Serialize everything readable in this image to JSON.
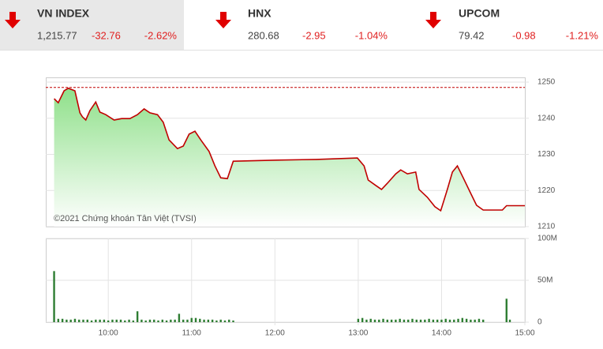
{
  "tickers": [
    {
      "name": "VN INDEX",
      "value": "1,215.77",
      "change": "-32.76",
      "percent": "-2.62%"
    },
    {
      "name": "HNX",
      "value": "280.68",
      "change": "-2.95",
      "percent": "-1.04%"
    },
    {
      "name": "UPCOM",
      "value": "79.42",
      "change": "-0.98",
      "percent": "-1.21%"
    }
  ],
  "chart_data": [
    {
      "type": "line",
      "annotation": "©2021 Chứng khoán Tân Việt (TVSI)",
      "color": "#c00000",
      "reference_line": 1248.53,
      "xlim": [
        9.25,
        15
      ],
      "ylim": [
        1210,
        1250
      ],
      "yticks": [
        1250,
        1240,
        1230,
        1220,
        1210
      ],
      "grid": true,
      "x": [
        9.35,
        9.4,
        9.47,
        9.52,
        9.6,
        9.66,
        9.69,
        9.73,
        9.78,
        9.85,
        9.9,
        9.97,
        10.07,
        10.16,
        10.26,
        10.35,
        10.43,
        10.5,
        10.59,
        10.66,
        10.73,
        10.83,
        10.9,
        10.97,
        11.04,
        11.11,
        11.21,
        11.28,
        11.35,
        11.43,
        11.5,
        12.02,
        12.5,
        12.99,
        13.07,
        13.12,
        13.21,
        13.28,
        13.35,
        13.45,
        13.51,
        13.59,
        13.69,
        13.73,
        13.83,
        13.92,
        13.99,
        14.07,
        14.13,
        14.19,
        14.26,
        14.35,
        14.42,
        14.5,
        14.73,
        14.78,
        15
      ],
      "values": [
        1245.4,
        1244.3,
        1247.6,
        1248.3,
        1247.6,
        1241.5,
        1240.4,
        1239.5,
        1242.1,
        1244.5,
        1241.7,
        1241,
        1239.5,
        1239.9,
        1239.9,
        1241,
        1242.6,
        1241.5,
        1241,
        1238.9,
        1234,
        1231.6,
        1232.3,
        1235.6,
        1236.4,
        1234,
        1230.8,
        1226.8,
        1223.5,
        1223.3,
        1228.1,
        1228.4,
        1228.6,
        1229,
        1226.8,
        1222.9,
        1221.4,
        1220.3,
        1222,
        1224.6,
        1225.7,
        1224.6,
        1225.1,
        1220.3,
        1218.1,
        1215.5,
        1214.4,
        1220.3,
        1225.1,
        1226.8,
        1223.5,
        1219.2,
        1215.9,
        1214.6,
        1214.6,
        1215.8,
        1215.8
      ]
    },
    {
      "type": "bar",
      "color": "#2e7d32",
      "xlim": [
        9.25,
        15
      ],
      "ylim": [
        0,
        100
      ],
      "grid": true,
      "yticks": [
        {
          "value": 100,
          "label": "100M"
        },
        {
          "value": 50,
          "label": "50M"
        },
        0
      ],
      "xticks": [
        {
          "value": 10,
          "label": "10:00"
        },
        {
          "value": 11,
          "label": "11:00"
        },
        {
          "value": 12,
          "label": "12:00"
        },
        {
          "value": 13,
          "label": "13:00"
        },
        {
          "value": 14,
          "label": "14:00"
        },
        {
          "value": 15,
          "label": "15:00"
        }
      ],
      "x": [
        9.35,
        9.4,
        9.45,
        9.5,
        9.55,
        9.6,
        9.65,
        9.7,
        9.75,
        9.8,
        9.85,
        9.9,
        9.95,
        10,
        10.05,
        10.1,
        10.15,
        10.2,
        10.25,
        10.3,
        10.35,
        10.4,
        10.45,
        10.5,
        10.55,
        10.6,
        10.65,
        10.7,
        10.75,
        10.8,
        10.85,
        10.9,
        10.95,
        11,
        11.05,
        11.1,
        11.15,
        11.2,
        11.25,
        11.3,
        11.35,
        11.4,
        11.45,
        11.5,
        13,
        13.05,
        13.1,
        13.15,
        13.2,
        13.25,
        13.3,
        13.35,
        13.4,
        13.45,
        13.5,
        13.55,
        13.6,
        13.65,
        13.7,
        13.75,
        13.8,
        13.85,
        13.9,
        13.95,
        14,
        14.05,
        14.1,
        14.15,
        14.2,
        14.25,
        14.3,
        14.35,
        14.4,
        14.45,
        14.5,
        14.78,
        14.82
      ],
      "values": [
        61,
        4,
        4,
        3,
        3,
        4,
        3,
        3,
        3,
        2,
        3,
        3,
        3,
        2,
        3,
        3,
        3,
        2,
        3,
        2,
        13,
        3,
        2,
        3,
        3,
        2,
        3,
        2,
        3,
        3,
        10,
        3,
        3,
        5,
        5,
        4,
        3,
        3,
        3,
        2,
        3,
        2,
        3,
        2,
        4,
        5,
        3,
        4,
        3,
        3,
        4,
        3,
        3,
        3,
        4,
        3,
        3,
        4,
        3,
        3,
        3,
        4,
        3,
        3,
        3,
        4,
        3,
        3,
        4,
        5,
        4,
        3,
        3,
        4,
        3,
        28,
        3
      ]
    }
  ]
}
